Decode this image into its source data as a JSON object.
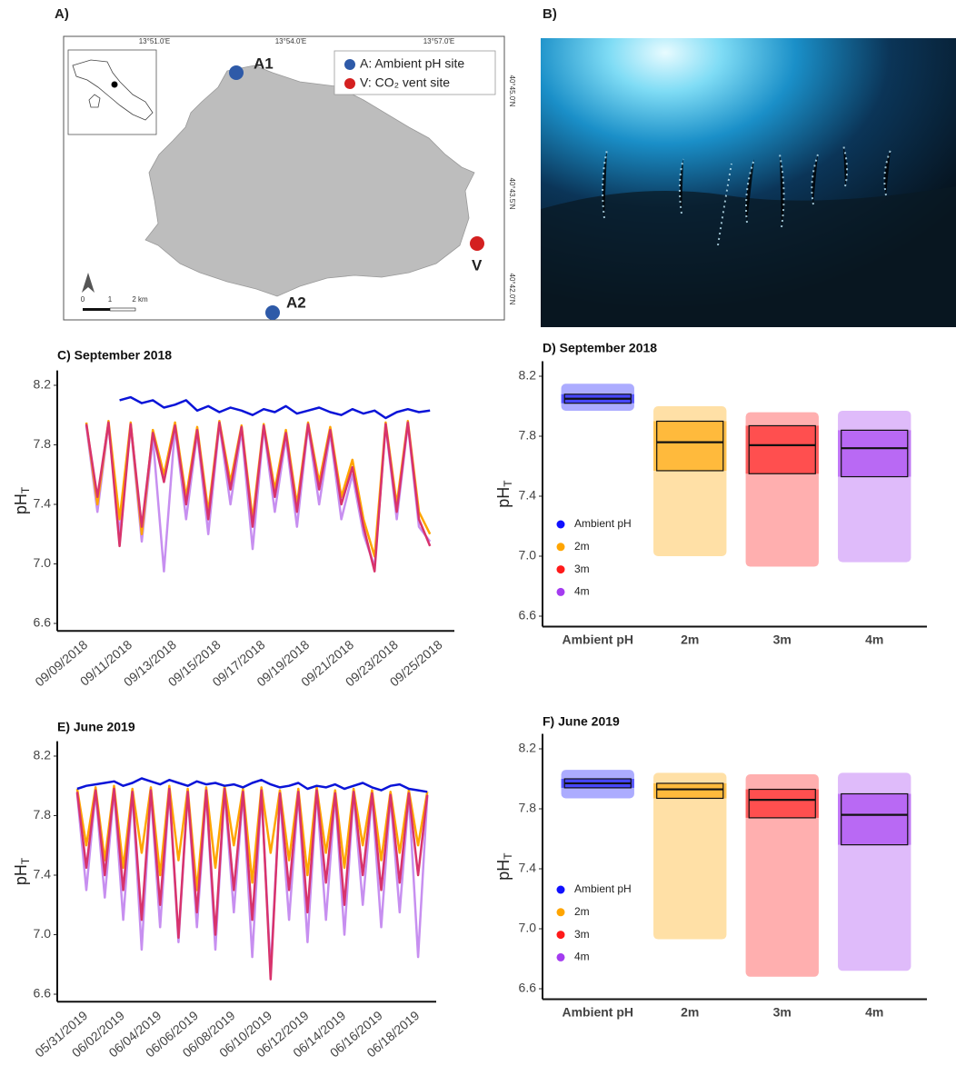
{
  "map": {
    "label": "A)",
    "coordinates_top": [
      "13°51.0'E",
      "13°54.0'E",
      "13°57.0'E"
    ],
    "coordinates_right": [
      "40°45.0'N",
      "40°43.5'N",
      "40°42.0'N"
    ],
    "sites": [
      "A1",
      "A2",
      "V"
    ],
    "legend": [
      "A: Ambient pH site",
      "V: CO₂ vent site"
    ],
    "scale": [
      "0",
      "1",
      "2 km"
    ]
  },
  "photo": {
    "label": "B)"
  },
  "chart_data": [
    {
      "type": "line",
      "title": "C) September 2018",
      "ylabel": "pH",
      "ylabel_subscript": "T",
      "categories": [
        "09/09/2018",
        null,
        null,
        null,
        "09/11/2018",
        null,
        null,
        null,
        "09/13/2018",
        null,
        null,
        null,
        "09/15/2018",
        null,
        null,
        null,
        "09/17/2018",
        null,
        null,
        null,
        "09/19/2018",
        null,
        null,
        null,
        "09/21/2018",
        null,
        null,
        null,
        "09/23/2018",
        null,
        null,
        null,
        "09/25/2018"
      ],
      "ylim": [
        6.55,
        8.3
      ],
      "yticks": [
        6.6,
        {
          "value": 7,
          "label": "7.0"
        },
        7.4,
        7.8,
        8.2
      ],
      "series": [
        {
          "color": "#c78ff0",
          "values": [
            7.93,
            7.35,
            7.94,
            7.2,
            7.93,
            7.15,
            7.85,
            6.95,
            7.92,
            7.3,
            7.88,
            7.2,
            7.94,
            7.4,
            7.9,
            7.1,
            7.92,
            7.35,
            7.85,
            7.25,
            7.93,
            7.4,
            7.88,
            7.3,
            7.6,
            7.2,
            6.98,
            7.93,
            7.3,
            7.94,
            7.25,
            7.15,
            null
          ]
        },
        {
          "color": "#ffa500",
          "values": [
            7.95,
            7.4,
            7.96,
            7.3,
            7.95,
            7.2,
            7.9,
            7.6,
            7.95,
            7.45,
            7.92,
            7.35,
            7.96,
            7.55,
            7.93,
            7.3,
            7.94,
            7.5,
            7.9,
            7.4,
            7.95,
            7.55,
            7.92,
            7.45,
            7.7,
            7.3,
            7.05,
            7.95,
            7.4,
            7.96,
            7.35,
            7.2,
            null
          ]
        },
        {
          "color": "#d8336c",
          "values": [
            7.94,
            7.45,
            7.95,
            7.12,
            7.94,
            7.25,
            7.88,
            7.55,
            7.93,
            7.4,
            7.9,
            7.3,
            7.95,
            7.5,
            7.92,
            7.25,
            7.93,
            7.45,
            7.88,
            7.35,
            7.94,
            7.5,
            7.9,
            7.4,
            7.65,
            7.25,
            6.95,
            7.94,
            7.35,
            7.95,
            7.3,
            7.12,
            null
          ]
        },
        {
          "color": "#0a14d8",
          "values": [
            null,
            null,
            null,
            8.1,
            8.12,
            8.08,
            8.1,
            8.05,
            8.07,
            8.1,
            8.03,
            8.06,
            8.02,
            8.05,
            8.03,
            8.0,
            8.04,
            8.02,
            8.06,
            8.01,
            8.03,
            8.05,
            8.02,
            8.0,
            8.04,
            8.01,
            8.03,
            7.98,
            8.02,
            8.04,
            8.02,
            8.03,
            null
          ]
        }
      ]
    },
    {
      "type": "box",
      "title": "D) September 2018",
      "ylabel": "pH",
      "ylabel_subscript": "T",
      "categories": [
        "Ambient pH",
        "2m",
        "3m",
        "4m"
      ],
      "ylim": [
        6.53,
        8.3
      ],
      "yticks": [
        6.6,
        {
          "value": 7,
          "label": "7.0"
        },
        7.4,
        7.8,
        8.2
      ],
      "boxes": [
        {
          "color": "#1010ff",
          "min": 7.97,
          "q1": 8.02,
          "median": 8.05,
          "q3": 8.08,
          "max": 8.15
        },
        {
          "color": "#ffa500",
          "min": 7.0,
          "q1": 7.57,
          "median": 7.76,
          "q3": 7.9,
          "max": 8.0
        },
        {
          "color": "#ff1a1a",
          "min": 6.93,
          "q1": 7.55,
          "median": 7.74,
          "q3": 7.87,
          "max": 7.96
        },
        {
          "color": "#a43cf0",
          "min": 6.96,
          "q1": 7.53,
          "median": 7.72,
          "q3": 7.84,
          "max": 7.97
        }
      ]
    },
    {
      "type": "line",
      "title": "E) June 2019",
      "ylabel": "pH",
      "ylabel_subscript": "T",
      "categories": [
        null,
        "05/31/2019",
        null,
        null,
        null,
        "06/02/2019",
        null,
        null,
        null,
        "06/04/2019",
        null,
        null,
        null,
        "06/06/2019",
        null,
        null,
        null,
        "06/08/2019",
        null,
        null,
        null,
        "06/10/2019",
        null,
        null,
        null,
        "06/12/2019",
        null,
        null,
        null,
        "06/14/2019",
        null,
        null,
        null,
        "06/16/2019",
        null,
        null,
        null,
        "06/18/2019",
        null
      ],
      "ylim": [
        6.55,
        8.3
      ],
      "yticks": [
        6.6,
        {
          "value": 7,
          "label": "7.0"
        },
        7.4,
        7.8,
        8.2
      ],
      "series": [
        {
          "color": "#c78ff0",
          "values": [
            7.95,
            7.3,
            7.96,
            7.25,
            7.97,
            7.1,
            7.95,
            6.9,
            7.96,
            7.05,
            7.97,
            6.95,
            7.95,
            7.05,
            7.96,
            6.9,
            7.97,
            7.15,
            7.95,
            6.85,
            7.96,
            6.75,
            7.94,
            7.1,
            7.95,
            6.95,
            7.96,
            7.1,
            7.94,
            7.0,
            7.95,
            7.2,
            7.94,
            7.05,
            7.93,
            7.15,
            7.94,
            6.85,
            7.93
          ]
        },
        {
          "color": "#ffa500",
          "values": [
            7.98,
            7.6,
            7.99,
            7.5,
            8.0,
            7.45,
            7.98,
            7.55,
            7.99,
            7.4,
            8.0,
            7.5,
            7.98,
            7.3,
            7.99,
            7.45,
            8.0,
            7.6,
            7.98,
            7.35,
            7.99,
            7.55,
            7.97,
            7.5,
            7.98,
            7.4,
            7.99,
            7.55,
            7.97,
            7.45,
            7.98,
            7.6,
            7.97,
            7.5,
            7.96,
            7.55,
            7.97,
            7.6,
            7.96
          ]
        },
        {
          "color": "#d8336c",
          "values": [
            7.96,
            7.45,
            7.97,
            7.4,
            7.98,
            7.3,
            7.96,
            7.1,
            7.97,
            7.2,
            7.98,
            6.98,
            7.96,
            7.15,
            7.97,
            7.0,
            7.98,
            7.3,
            7.96,
            7.1,
            7.97,
            6.7,
            7.95,
            7.3,
            7.96,
            7.15,
            7.97,
            7.35,
            7.95,
            7.2,
            7.96,
            7.4,
            7.95,
            7.3,
            7.94,
            7.35,
            7.95,
            7.4,
            7.94
          ]
        },
        {
          "color": "#0a14d8",
          "values": [
            7.98,
            8.0,
            8.01,
            8.02,
            8.03,
            8.0,
            8.02,
            8.05,
            8.03,
            8.01,
            8.04,
            8.02,
            8.0,
            8.03,
            8.01,
            8.02,
            8.0,
            8.01,
            7.99,
            8.02,
            8.04,
            8.01,
            7.99,
            8.0,
            8.02,
            7.98,
            8.0,
            7.99,
            8.01,
            7.98,
            8.0,
            8.02,
            7.99,
            7.97,
            8.0,
            8.01,
            7.98,
            7.97,
            7.96
          ]
        }
      ]
    },
    {
      "type": "box",
      "title": "F) June 2019",
      "ylabel": "pH",
      "ylabel_subscript": "T",
      "categories": [
        "Ambient pH",
        "2m",
        "3m",
        "4m"
      ],
      "ylim": [
        6.53,
        8.3
      ],
      "yticks": [
        6.6,
        {
          "value": 7,
          "label": "7.0"
        },
        7.4,
        7.8,
        8.2
      ],
      "boxes": [
        {
          "color": "#1010ff",
          "min": 7.87,
          "q1": 7.94,
          "median": 7.97,
          "q3": 8.0,
          "max": 8.06
        },
        {
          "color": "#ffa500",
          "min": 6.93,
          "q1": 7.87,
          "median": 7.93,
          "q3": 7.97,
          "max": 8.04
        },
        {
          "color": "#ff1a1a",
          "min": 6.68,
          "q1": 7.74,
          "median": 7.86,
          "q3": 7.93,
          "max": 8.03
        },
        {
          "color": "#a43cf0",
          "min": 6.72,
          "q1": 7.56,
          "median": 7.76,
          "q3": 7.9,
          "max": 8.04
        }
      ]
    }
  ]
}
